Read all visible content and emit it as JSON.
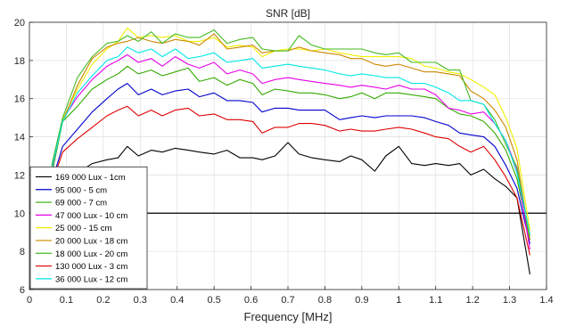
{
  "chart_data": {
    "type": "line",
    "title": "SNR [dB]",
    "xlabel": "Frequency [MHz]",
    "ylabel": "",
    "xlim": [
      0,
      1.4
    ],
    "ylim": [
      6,
      20
    ],
    "xticks": [
      "0",
      "0.1",
      "0.2",
      "0.3",
      "0.4",
      "0.5",
      "0.6",
      "0.7",
      "0.8",
      "0.9",
      "1",
      "1.1",
      "1.2",
      "1.3",
      "1.4"
    ],
    "yticks": [
      "6",
      "8",
      "10",
      "12",
      "14",
      "16",
      "18",
      "20"
    ],
    "grid": true,
    "legend_position": "bottom-left",
    "reference_line": {
      "y": 10,
      "color": "#000000"
    },
    "x": [
      0.06,
      0.09,
      0.13,
      0.17,
      0.21,
      0.24,
      0.265,
      0.295,
      0.33,
      0.36,
      0.395,
      0.43,
      0.46,
      0.5,
      0.535,
      0.57,
      0.605,
      0.63,
      0.665,
      0.7,
      0.73,
      0.765,
      0.8,
      0.84,
      0.87,
      0.9,
      0.935,
      0.965,
      1.0,
      1.035,
      1.07,
      1.1,
      1.135,
      1.165,
      1.195,
      1.23,
      1.26,
      1.29,
      1.32,
      1.355
    ],
    "series": [
      {
        "name": "169 000 Lux - 1cm",
        "color": "#000000",
        "values": [
          11.8,
          11.9,
          12.1,
          12.6,
          12.8,
          12.9,
          13.5,
          13.0,
          13.3,
          13.2,
          13.4,
          13.3,
          13.2,
          13.1,
          13.3,
          12.9,
          12.9,
          12.8,
          13.0,
          13.7,
          13.1,
          12.9,
          12.8,
          12.7,
          13.0,
          12.8,
          12.2,
          13.0,
          13.5,
          12.6,
          12.5,
          12.6,
          12.5,
          12.6,
          12.0,
          12.3,
          11.8,
          11.4,
          10.8,
          6.8
        ]
      },
      {
        "name": "95 000 - 5 cm",
        "color": "#0000cc",
        "values": [
          11.6,
          13.5,
          14.4,
          15.3,
          16.0,
          16.5,
          16.8,
          16.2,
          16.5,
          16.2,
          16.4,
          16.5,
          16.1,
          16.3,
          15.9,
          15.9,
          15.8,
          15.3,
          15.5,
          15.5,
          15.4,
          15.4,
          15.4,
          14.9,
          15.0,
          15.1,
          15.0,
          15.1,
          15.1,
          15.1,
          15.0,
          14.8,
          14.6,
          14.2,
          14.1,
          14.0,
          13.5,
          12.5,
          11.3,
          8.4
        ]
      },
      {
        "name": "69 000 - 7 cm",
        "color": "#33aa00",
        "values": [
          12.0,
          14.8,
          15.6,
          16.5,
          17.0,
          17.3,
          17.7,
          17.3,
          17.5,
          17.2,
          17.4,
          17.6,
          16.9,
          17.1,
          16.7,
          17.0,
          16.8,
          16.2,
          16.5,
          16.4,
          16.3,
          16.3,
          16.2,
          16.0,
          16.1,
          16.3,
          16.0,
          16.3,
          16.3,
          16.2,
          16.1,
          16.0,
          15.5,
          15.2,
          15.1,
          14.8,
          14.2,
          13.3,
          11.8,
          8.6
        ]
      },
      {
        "name": "47 000 Lux - 10 cm",
        "color": "#e600e6",
        "values": [
          12.2,
          14.9,
          16.1,
          17.0,
          17.7,
          18.0,
          18.3,
          17.9,
          18.1,
          17.7,
          18.2,
          17.8,
          17.6,
          17.9,
          17.3,
          17.5,
          17.3,
          16.8,
          17.0,
          17.1,
          17.0,
          16.9,
          16.8,
          16.7,
          16.6,
          16.7,
          16.6,
          16.5,
          16.7,
          16.5,
          16.5,
          16.2,
          15.5,
          15.4,
          15.2,
          15.3,
          14.7,
          13.8,
          12.3,
          8.1
        ]
      },
      {
        "name": "25 000 - 15 cm",
        "color": "#f0f000",
        "values": [
          12.4,
          14.9,
          16.5,
          17.8,
          18.6,
          19.0,
          19.7,
          19.2,
          19.3,
          19.2,
          19.3,
          19.0,
          19.0,
          19.2,
          18.7,
          18.8,
          18.7,
          18.2,
          18.5,
          18.6,
          18.6,
          18.5,
          18.6,
          18.4,
          18.3,
          18.2,
          18.2,
          18.2,
          18.2,
          18.1,
          17.7,
          17.6,
          17.4,
          17.3,
          17.0,
          16.6,
          16.2,
          15.0,
          13.4,
          9.1
        ]
      },
      {
        "name": " 20 000 Lux - 18 cm",
        "color": "#cc8800",
        "values": [
          12.3,
          14.8,
          16.7,
          18.1,
          18.7,
          18.9,
          19.0,
          19.2,
          19.0,
          18.9,
          19.1,
          19.0,
          18.8,
          19.4,
          18.6,
          18.7,
          18.8,
          18.4,
          18.5,
          18.5,
          18.7,
          18.5,
          18.4,
          18.3,
          18.1,
          18.1,
          17.8,
          17.7,
          17.8,
          17.6,
          17.4,
          17.4,
          17.3,
          17.2,
          16.4,
          16.0,
          15.4,
          14.5,
          12.8,
          8.6
        ]
      },
      {
        "name": "18 000 Lux - 20 cm",
        "color": "#44bb22",
        "values": [
          12.5,
          15.0,
          17.1,
          18.2,
          18.9,
          19.0,
          19.3,
          19.0,
          19.5,
          18.9,
          19.4,
          19.2,
          19.2,
          19.6,
          18.9,
          19.1,
          19.2,
          18.6,
          18.5,
          18.5,
          19.3,
          18.8,
          18.6,
          18.6,
          18.6,
          18.6,
          18.4,
          18.3,
          18.4,
          17.9,
          17.9,
          17.9,
          17.5,
          17.5,
          15.9,
          15.7,
          14.9,
          13.6,
          12.4,
          8.8
        ]
      },
      {
        "name": " 130 000 Lux - 3 cm",
        "color": "#dd0000",
        "values": [
          11.5,
          13.2,
          13.9,
          14.5,
          15.1,
          15.4,
          15.6,
          15.1,
          15.4,
          15.1,
          15.4,
          15.5,
          15.1,
          15.2,
          14.9,
          14.9,
          14.8,
          14.2,
          14.5,
          14.5,
          14.7,
          14.7,
          14.6,
          14.3,
          14.4,
          14.3,
          14.3,
          14.4,
          14.5,
          14.4,
          14.2,
          14.0,
          13.9,
          13.5,
          13.2,
          13.5,
          12.8,
          11.9,
          10.8,
          7.8
        ]
      },
      {
        "name": "36 000 Lux - 12 cm",
        "color": "#00e6e6",
        "values": [
          12.3,
          14.8,
          16.3,
          17.2,
          18.0,
          18.2,
          18.7,
          18.4,
          18.6,
          18.2,
          18.6,
          18.1,
          18.2,
          18.4,
          17.9,
          18.0,
          18.1,
          17.6,
          17.7,
          17.8,
          17.7,
          17.6,
          17.5,
          17.3,
          17.2,
          17.3,
          17.2,
          17.1,
          17.1,
          16.8,
          16.8,
          16.6,
          16.3,
          15.9,
          15.9,
          15.7,
          14.7,
          13.8,
          12.1,
          8.9
        ]
      }
    ]
  }
}
